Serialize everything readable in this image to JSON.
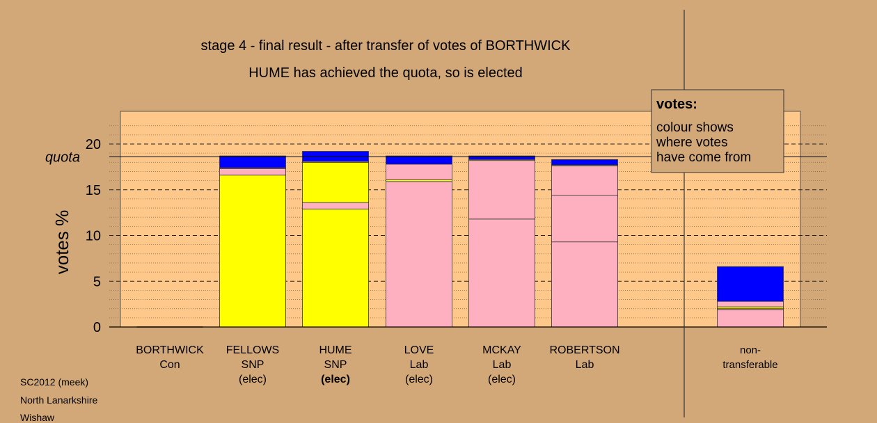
{
  "titles": {
    "line1": "stage 4 - final result - after transfer of votes of BORTHWICK",
    "line2": "HUME has achieved the quota, so is elected"
  },
  "footnotes": [
    "SC2012 (meek)",
    "North Lanarkshire",
    "Wishaw"
  ],
  "legend": {
    "title": "votes:",
    "lines": [
      "colour shows",
      "where votes",
      "have come from"
    ]
  },
  "colors": {
    "background": "#d2a878",
    "plot_area": "#fdc88a",
    "SNP": "#ffff00",
    "Lab": "#ffb0c0",
    "Con": "#0000ff"
  },
  "chart_data": {
    "type": "bar",
    "stacked": true,
    "ylabel": "votes %",
    "ylim": [
      0,
      23
    ],
    "yticks": [
      0,
      5,
      10,
      15,
      20
    ],
    "quota": 18.6,
    "quota_label": "quota",
    "grid": "dashed horizontal lines",
    "categories": [
      {
        "key": "BORTHWICK",
        "lines": [
          "BORTHWICK",
          "Con"
        ],
        "bold_third": false
      },
      {
        "key": "FELLOWS",
        "lines": [
          "FELLOWS",
          "SNP",
          "(elec)"
        ],
        "bold_third": false
      },
      {
        "key": "HUME",
        "lines": [
          "HUME",
          "SNP",
          "(elec)"
        ],
        "bold_third": true
      },
      {
        "key": "LOVE",
        "lines": [
          "LOVE",
          "Lab",
          "(elec)"
        ],
        "bold_third": false
      },
      {
        "key": "MCKAY",
        "lines": [
          "MCKAY",
          "Lab",
          "(elec)"
        ],
        "bold_third": false
      },
      {
        "key": "ROBERTSON",
        "lines": [
          "ROBERTSON",
          "Lab"
        ],
        "bold_third": false
      },
      {
        "key": "non-transferable",
        "lines": [
          "non-",
          "transferable"
        ],
        "bold_third": false
      }
    ],
    "stacks": {
      "BORTHWICK": [],
      "FELLOWS": [
        {
          "source": "SNP",
          "value": 16.6
        },
        {
          "source": "Lab",
          "value": 0.7
        },
        {
          "source": "Lab",
          "value": 0.1
        },
        {
          "source": "Con",
          "value": 1.3
        }
      ],
      "HUME": [
        {
          "source": "SNP",
          "value": 12.9
        },
        {
          "source": "Lab",
          "value": 0.7
        },
        {
          "source": "SNP",
          "value": 4.4
        },
        {
          "source": "Lab",
          "value": 0.1
        },
        {
          "source": "Con",
          "value": 1.1
        }
      ],
      "LOVE": [
        {
          "source": "Lab",
          "value": 15.9
        },
        {
          "source": "SNP",
          "value": 0.2
        },
        {
          "source": "Lab",
          "value": 1.7
        },
        {
          "source": "Con",
          "value": 0.9
        }
      ],
      "MCKAY": [
        {
          "source": "Lab",
          "value": 11.8
        },
        {
          "source": "Lab",
          "value": 6.4
        },
        {
          "source": "SNP",
          "value": 0.1
        },
        {
          "source": "Con",
          "value": 0.4
        }
      ],
      "ROBERTSON": [
        {
          "source": "Lab",
          "value": 9.3
        },
        {
          "source": "Lab",
          "value": 5.1
        },
        {
          "source": "Lab",
          "value": 3.2
        },
        {
          "source": "SNP",
          "value": 0.1
        },
        {
          "source": "Con",
          "value": 0.6
        }
      ],
      "non-transferable": [
        {
          "source": "Lab",
          "value": 1.9
        },
        {
          "source": "Lab",
          "value": 0.1
        },
        {
          "source": "SNP",
          "value": 0.2
        },
        {
          "source": "Lab",
          "value": 0.6
        },
        {
          "source": "Con",
          "value": 3.8
        }
      ]
    }
  }
}
